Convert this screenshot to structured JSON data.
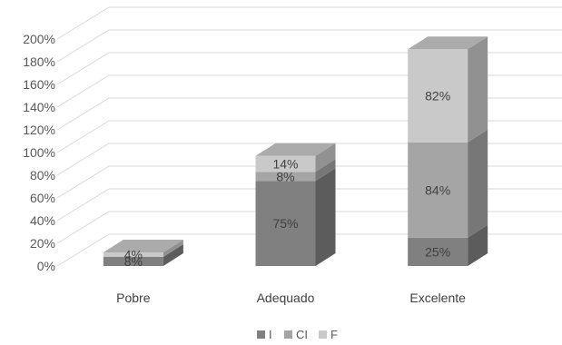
{
  "chart_data": {
    "type": "bar",
    "stacked": true,
    "three_d": true,
    "categories": [
      "Pobre",
      "Adequado",
      "Excelente"
    ],
    "series": [
      {
        "name": "I",
        "color": "#808080",
        "values": [
          8,
          75,
          25
        ],
        "labels": [
          "8%",
          "75%",
          "25%"
        ]
      },
      {
        "name": "CI",
        "color": "#a5a5a5",
        "values": [
          0,
          8,
          84
        ],
        "labels": [
          "",
          "8%",
          "84%"
        ]
      },
      {
        "name": "F",
        "color": "#c9c9c9",
        "values": [
          4,
          14,
          82
        ],
        "labels": [
          "4%",
          "14%",
          "82%"
        ]
      }
    ],
    "ylim": [
      0,
      200
    ],
    "yticks": [
      "0%",
      "20%",
      "40%",
      "60%",
      "80%",
      "100%",
      "120%",
      "140%",
      "160%",
      "180%",
      "200%"
    ],
    "grid": true,
    "legend_position": "bottom",
    "title": "",
    "xlabel": "",
    "ylabel": ""
  }
}
